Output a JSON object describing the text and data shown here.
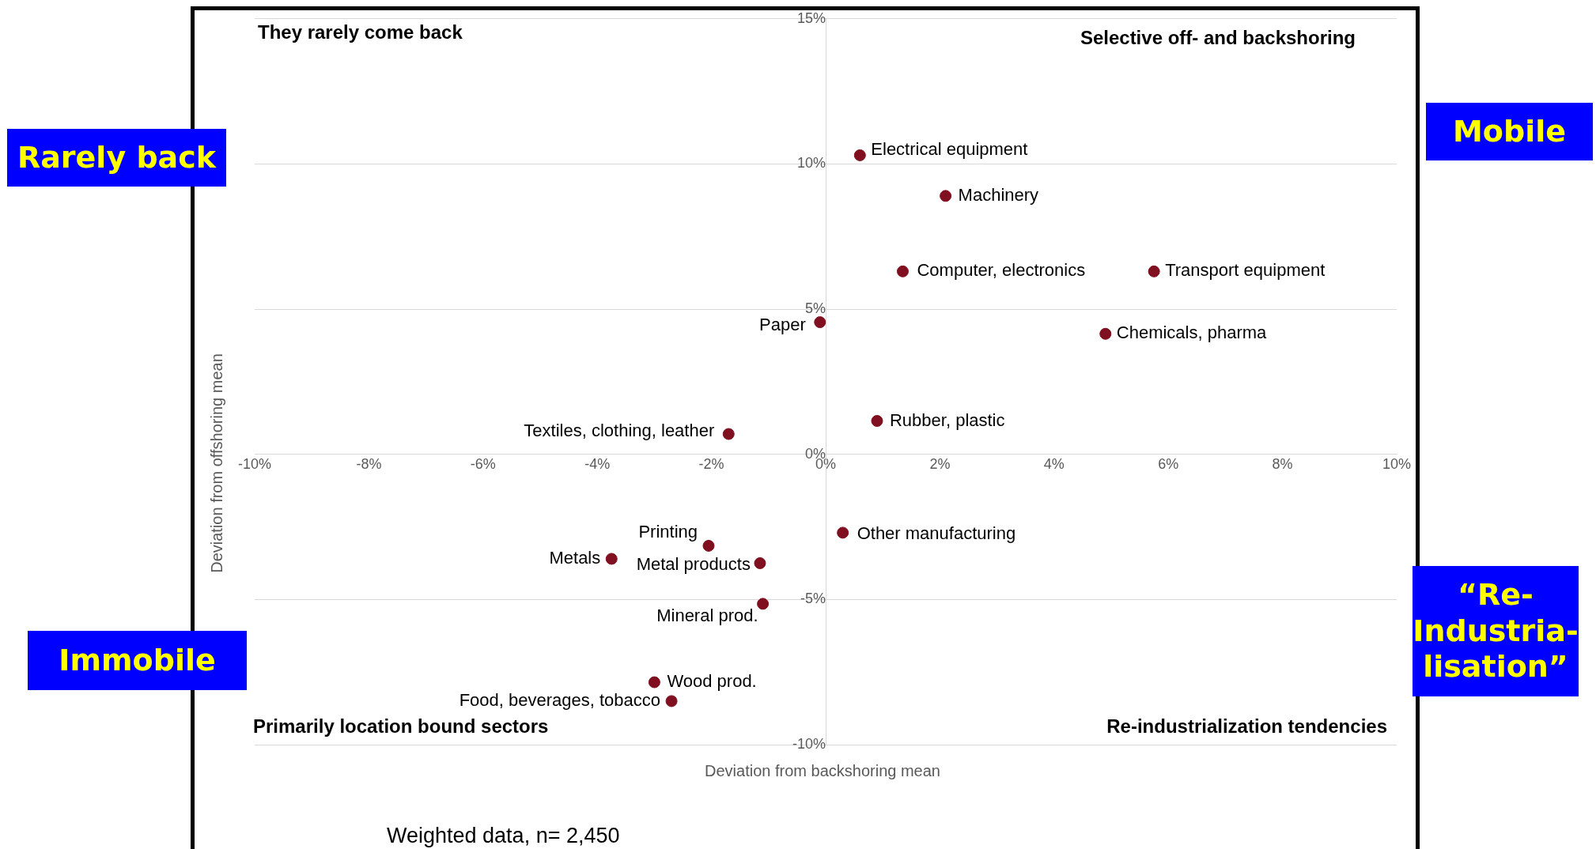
{
  "chart_data": {
    "type": "scatter",
    "xlabel": "Deviation from backshoring mean",
    "ylabel": "Deviation from offshoring mean",
    "xlim": [
      -10,
      10
    ],
    "ylim": [
      -10,
      15
    ],
    "xticks": [
      {
        "value": -10,
        "label": "-10%"
      },
      {
        "value": -8,
        "label": "-8%"
      },
      {
        "value": -6,
        "label": "-6%"
      },
      {
        "value": -4,
        "label": "-4%"
      },
      {
        "value": -2,
        "label": "-2%"
      },
      {
        "value": 0,
        "label": "0%"
      },
      {
        "value": 2,
        "label": "2%"
      },
      {
        "value": 4,
        "label": "4%"
      },
      {
        "value": 6,
        "label": "6%"
      },
      {
        "value": 8,
        "label": "8%"
      },
      {
        "value": 10,
        "label": "10%"
      }
    ],
    "yticks": [
      {
        "value": -10,
        "label": "-10%"
      },
      {
        "value": -5,
        "label": "-5%"
      },
      {
        "value": 0,
        "label": "0%"
      },
      {
        "value": 5,
        "label": "5%"
      },
      {
        "value": 10,
        "label": "10%"
      },
      {
        "value": 15,
        "label": "15%"
      }
    ],
    "grid": "y",
    "legend": false,
    "marker": "circle",
    "annotations": [
      "They rarely come back",
      "Selective off- and backshoring",
      "Primarily location bound sectors",
      "Re-industrialization tendencies",
      "Rarely back",
      "Mobile",
      "Immobile",
      "“Re-Industria-lisation”",
      "Weighted data, n= 2,450"
    ],
    "series": [
      {
        "name": "Electrical equipment",
        "color": "#800f1f",
        "x": [
          0.6
        ],
        "values": [
          10.3
        ]
      },
      {
        "name": "Machinery",
        "color": "#800f1f",
        "x": [
          2.1
        ],
        "values": [
          8.9
        ]
      },
      {
        "name": "Computer, electronics",
        "color": "#800f1f",
        "x": [
          1.35
        ],
        "values": [
          6.3
        ]
      },
      {
        "name": "Transport equipment",
        "color": "#800f1f",
        "x": [
          5.75
        ],
        "values": [
          6.3
        ]
      },
      {
        "name": "Paper",
        "color": "#800f1f",
        "x": [
          -0.1
        ],
        "values": [
          4.55
        ]
      },
      {
        "name": "Chemicals, pharma",
        "color": "#800f1f",
        "x": [
          4.9
        ],
        "values": [
          4.15
        ]
      },
      {
        "name": "Rubber, plastic",
        "color": "#800f1f",
        "x": [
          0.9
        ],
        "values": [
          1.15
        ]
      },
      {
        "name": "Textiles, clothing, leather",
        "color": "#800f1f",
        "x": [
          -1.7
        ],
        "values": [
          0.7
        ]
      },
      {
        "name": "Other manufacturing",
        "color": "#800f1f",
        "x": [
          0.3
        ],
        "values": [
          -2.7
        ]
      },
      {
        "name": "Printing",
        "color": "#800f1f",
        "x": [
          -2.05
        ],
        "values": [
          -3.15
        ]
      },
      {
        "name": "Metals",
        "color": "#800f1f",
        "x": [
          -3.75
        ],
        "values": [
          -3.6
        ]
      },
      {
        "name": "Metal products",
        "color": "#800f1f",
        "x": [
          -1.15
        ],
        "values": [
          -3.75
        ]
      },
      {
        "name": "Mineral prod.",
        "color": "#800f1f",
        "x": [
          -1.1
        ],
        "values": [
          -5.15
        ]
      },
      {
        "name": "Wood prod.",
        "color": "#800f1f",
        "x": [
          -3.0
        ],
        "values": [
          -7.85
        ]
      },
      {
        "name": "Food, beverages, tobacco",
        "color": "#800f1f",
        "x": [
          -2.7
        ],
        "values": [
          -8.5
        ]
      }
    ]
  }
}
